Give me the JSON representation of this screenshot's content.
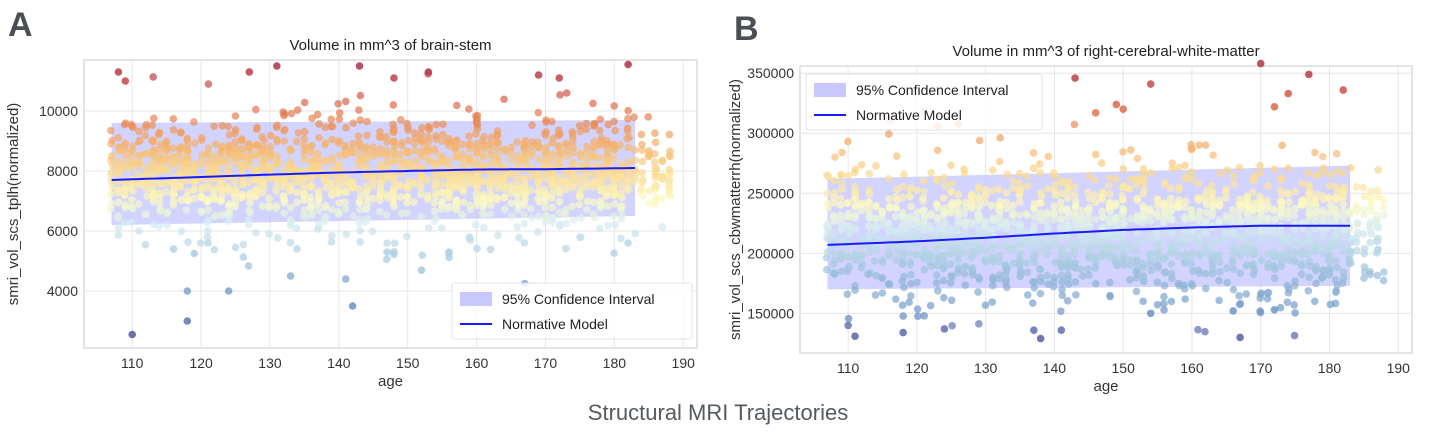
{
  "figure_title": "Structural MRI Trajectories",
  "chart_data": [
    {
      "panel": "A",
      "type": "scatter",
      "title": "Volume in mm^3 of brain-stem",
      "xlabel": "age",
      "ylabel": "smri_vol_scs_tplh(normalized)",
      "xlim": [
        103,
        192
      ],
      "ylim": [
        2100,
        11700
      ],
      "xticks": [
        110,
        120,
        130,
        140,
        150,
        160,
        170,
        180,
        190
      ],
      "yticks": [
        4000,
        6000,
        8000,
        10000
      ],
      "grid": true,
      "legend": {
        "placement": "bottom-right",
        "entries": [
          "95% Confidence Interval",
          "Normative Model"
        ]
      },
      "color_range": [
        2500,
        11500
      ],
      "normative_model": {
        "x": [
          107,
          120,
          130,
          140,
          150,
          160,
          170,
          183
        ],
        "y": [
          7700,
          7800,
          7880,
          7950,
          8000,
          8050,
          8060,
          8100
        ]
      },
      "confidence_interval": {
        "x": [
          107,
          183
        ],
        "lower": [
          6200,
          6500
        ],
        "upper": [
          9600,
          9700
        ]
      },
      "cloud": {
        "x_range": [
          107,
          183
        ],
        "tail_x_range": [
          183,
          188
        ],
        "center": 7900,
        "std": 950,
        "n": 1600
      },
      "outliers": [
        [
          108,
          11300
        ],
        [
          109,
          11000
        ],
        [
          127,
          11300
        ],
        [
          131,
          11500
        ],
        [
          143,
          11500
        ],
        [
          148,
          11100
        ],
        [
          153,
          11300
        ],
        [
          169,
          11200
        ],
        [
          172,
          11100
        ],
        [
          182,
          11550
        ],
        [
          110,
          2550
        ],
        [
          118,
          3000
        ],
        [
          118,
          4000
        ],
        [
          124,
          4000
        ],
        [
          133,
          4500
        ],
        [
          141,
          4400
        ],
        [
          142,
          3500
        ],
        [
          167,
          4250
        ],
        [
          116,
          5400
        ],
        [
          119,
          5250
        ],
        [
          147,
          5300
        ],
        [
          148,
          5300
        ],
        [
          156,
          5300
        ],
        [
          182,
          5600
        ],
        [
          121,
          5600
        ]
      ]
    },
    {
      "panel": "B",
      "type": "scatter",
      "title": "Volume in mm^3 of right-cerebral-white-matter",
      "xlabel": "age",
      "ylabel": "smri_vol_scs_cbwmatterrh(normalized)",
      "xlim": [
        103,
        192
      ],
      "ylim": [
        117000,
        356000
      ],
      "xticks": [
        110,
        120,
        130,
        140,
        150,
        160,
        170,
        180,
        190
      ],
      "yticks": [
        150000,
        200000,
        250000,
        300000,
        350000
      ],
      "grid": true,
      "legend": {
        "placement": "top-left",
        "entries": [
          "95% Confidence Interval",
          "Normative Model"
        ]
      },
      "color_range": [
        125000,
        355000
      ],
      "normative_model": {
        "x": [
          107,
          120,
          130,
          140,
          150,
          160,
          170,
          183
        ],
        "y": [
          207000,
          210000,
          213000,
          216500,
          219500,
          221500,
          223000,
          223000
        ]
      },
      "confidence_interval": {
        "x": [
          107,
          183
        ],
        "lower": [
          170000,
          173000
        ],
        "upper": [
          262000,
          273000
        ]
      },
      "cloud": {
        "x_range": [
          107,
          183
        ],
        "tail_x_range": [
          183,
          188
        ],
        "center": 218000,
        "std": 28000,
        "n": 1600
      },
      "outliers": [
        [
          170,
          358000
        ],
        [
          177,
          349000
        ],
        [
          143,
          346000
        ],
        [
          154,
          341000
        ],
        [
          182,
          336000
        ],
        [
          174,
          333000
        ],
        [
          149,
          324000
        ],
        [
          150,
          320000
        ],
        [
          172,
          322000
        ],
        [
          146,
          317000
        ],
        [
          123,
          306000
        ],
        [
          126,
          308000
        ],
        [
          167,
          130000
        ],
        [
          138,
          129000
        ],
        [
          111,
          131000
        ],
        [
          141,
          136000
        ],
        [
          124,
          137000
        ],
        [
          137,
          136000
        ],
        [
          118,
          134000
        ],
        [
          154,
          150000
        ],
        [
          166,
          152000
        ],
        [
          172,
          153000
        ],
        [
          110,
          140000
        ]
      ]
    }
  ],
  "colors": {
    "model_line": "#1a1aff",
    "ci_band": "#c8c8ff",
    "grid": "#e6e6e6",
    "axes_border": "#dcdcdc"
  }
}
